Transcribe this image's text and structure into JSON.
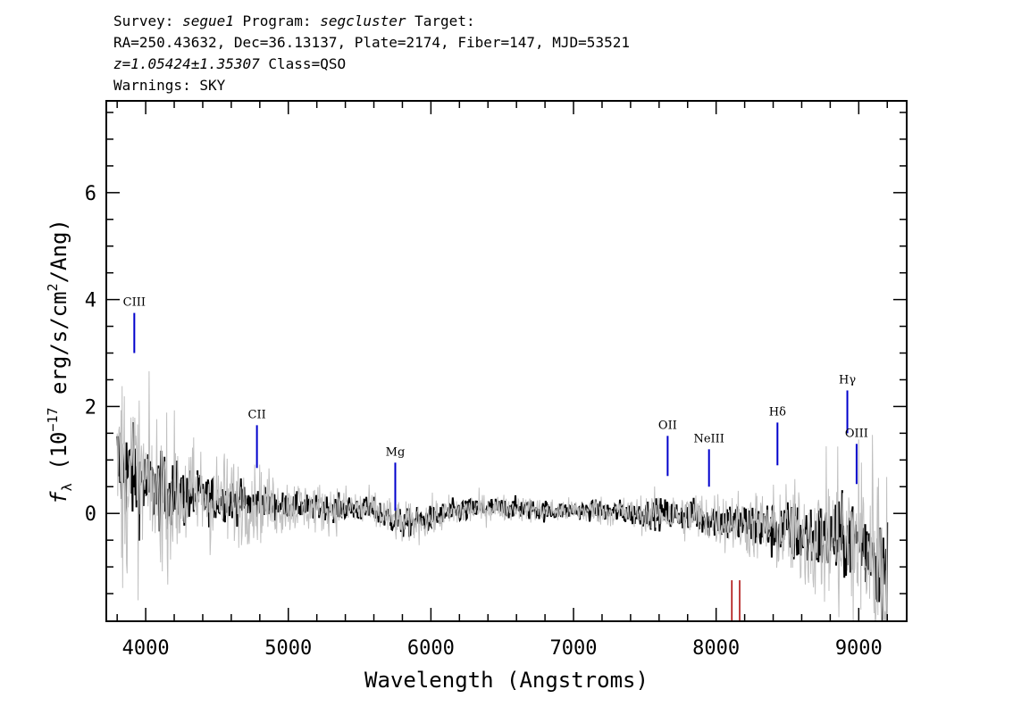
{
  "header": {
    "line1": {
      "survey_label": "Survey: ",
      "survey": "segue1",
      "program_label": " Program: ",
      "program": "segcluster",
      "target_label": " Target:"
    },
    "line2": "RA=250.43632, Dec=36.13137, Plate=2174, Fiber=147, MJD=53521",
    "line3": {
      "z": "z=1.05424±1.35307",
      "class": " Class=QSO"
    },
    "line4": "Warnings: SKY"
  },
  "colors": {
    "flux": "#000000",
    "error": "#c0c0c0",
    "emission_line": "#0000cc",
    "sky_line": "#aa0000"
  },
  "chart_data": {
    "type": "line",
    "xlabel": "Wavelength (Angstroms)",
    "ylabel_parts": {
      "f": "f",
      "sub": "λ",
      "open": " (10",
      "exp": "−17",
      "mid": " erg/s/cm",
      "exp2": "2",
      "close": "/Ang)"
    },
    "xlim": [
      3730,
      9330
    ],
    "ylim": [
      -2.0,
      7.7
    ],
    "xticks": [
      4000,
      5000,
      6000,
      7000,
      8000,
      9000
    ],
    "yticks": [
      0,
      2,
      4,
      6
    ],
    "xtick_labels": [
      "4000",
      "5000",
      "6000",
      "7000",
      "8000",
      "9000"
    ],
    "ytick_labels": [
      "0",
      "2",
      "4",
      "6"
    ],
    "data_range": [
      3800,
      9200
    ],
    "series": [
      {
        "kind": "flux",
        "x": [
          3800,
          3850,
          3900,
          3950,
          4000,
          4100,
          4200,
          4300,
          4400,
          4500,
          4600,
          4700,
          4800,
          4900,
          5000,
          5200,
          5400,
          5600,
          5800,
          6000,
          6200,
          6400,
          6600,
          6800,
          7000,
          7200,
          7400,
          7600,
          7800,
          8000,
          8200,
          8400,
          8600,
          8800,
          9000,
          9100,
          9200
        ],
        "y": [
          0.9,
          0.8,
          0.7,
          0.6,
          0.5,
          0.4,
          0.35,
          0.3,
          0.3,
          0.25,
          0.25,
          0.2,
          0.2,
          0.15,
          0.15,
          0.1,
          0.1,
          0.05,
          -0.2,
          -0.1,
          0.05,
          0.1,
          0.1,
          0.05,
          0.05,
          0.05,
          0.0,
          0.0,
          -0.05,
          -0.1,
          -0.2,
          -0.3,
          -0.4,
          -0.5,
          -0.5,
          -0.7,
          -1.2
        ],
        "noise": [
          1.4,
          1.3,
          1.2,
          1.1,
          1.0,
          0.9,
          0.8,
          0.7,
          0.6,
          0.5,
          0.5,
          0.45,
          0.4,
          0.35,
          0.3,
          0.3,
          0.3,
          0.3,
          0.35,
          0.3,
          0.3,
          0.25,
          0.25,
          0.25,
          0.2,
          0.25,
          0.3,
          0.35,
          0.4,
          0.45,
          0.55,
          0.7,
          0.8,
          0.9,
          1.0,
          1.1,
          1.4
        ]
      },
      {
        "kind": "error",
        "x": [
          3800,
          3850,
          3900,
          3950,
          4000,
          4100,
          4200,
          4300,
          4400,
          4500,
          4600,
          4700,
          4800,
          4900,
          5000,
          5200,
          5400,
          5600,
          5800,
          6000,
          6200,
          6400,
          6600,
          6800,
          7000,
          7200,
          7400,
          7600,
          7800,
          8000,
          8200,
          8400,
          8600,
          8800,
          9000,
          9100,
          9200
        ],
        "y": [
          0.9,
          0.8,
          0.7,
          0.6,
          0.5,
          0.4,
          0.35,
          0.3,
          0.3,
          0.25,
          0.25,
          0.2,
          0.2,
          0.15,
          0.15,
          0.1,
          0.1,
          0.05,
          -0.2,
          -0.1,
          0.05,
          0.1,
          0.1,
          0.05,
          0.05,
          0.05,
          0.0,
          0.0,
          -0.05,
          -0.1,
          -0.2,
          -0.3,
          -0.4,
          -0.5,
          -0.5,
          -0.7,
          -1.2
        ],
        "noise": [
          2.8,
          2.6,
          2.4,
          2.2,
          2.0,
          1.8,
          1.7,
          1.5,
          1.3,
          1.2,
          1.1,
          1.0,
          0.9,
          0.8,
          0.7,
          0.6,
          0.55,
          0.5,
          0.5,
          0.45,
          0.4,
          0.35,
          0.3,
          0.3,
          0.3,
          0.35,
          0.4,
          0.5,
          0.6,
          0.7,
          0.8,
          1.0,
          1.3,
          1.8,
          2.4,
          2.8,
          3.2
        ]
      }
    ],
    "emission_lines": [
      {
        "name": "CIII",
        "x": 3920,
        "y_bottom": 3.0,
        "y_top": 3.75
      },
      {
        "name": "CII",
        "x": 4780,
        "y_bottom": 0.85,
        "y_top": 1.65
      },
      {
        "name": "Mg",
        "x": 5750,
        "y_bottom": 0.05,
        "y_top": 0.95
      },
      {
        "name": "OII",
        "x": 7660,
        "y_bottom": 0.7,
        "y_top": 1.45
      },
      {
        "name": "NeIII",
        "x": 7950,
        "y_bottom": 0.5,
        "y_top": 1.2
      },
      {
        "name": "Hδ",
        "x": 8430,
        "y_bottom": 0.9,
        "y_top": 1.7
      },
      {
        "name": "Hγ",
        "x": 8920,
        "y_bottom": 1.5,
        "y_top": 2.3
      },
      {
        "name": "OIII",
        "x": 8985,
        "y_bottom": 0.55,
        "y_top": 1.3
      }
    ],
    "sky_lines": [
      {
        "x": 8110,
        "y_bottom": -2.0,
        "y_top": -1.25
      },
      {
        "x": 8165,
        "y_bottom": -2.0,
        "y_top": -1.25
      }
    ]
  }
}
